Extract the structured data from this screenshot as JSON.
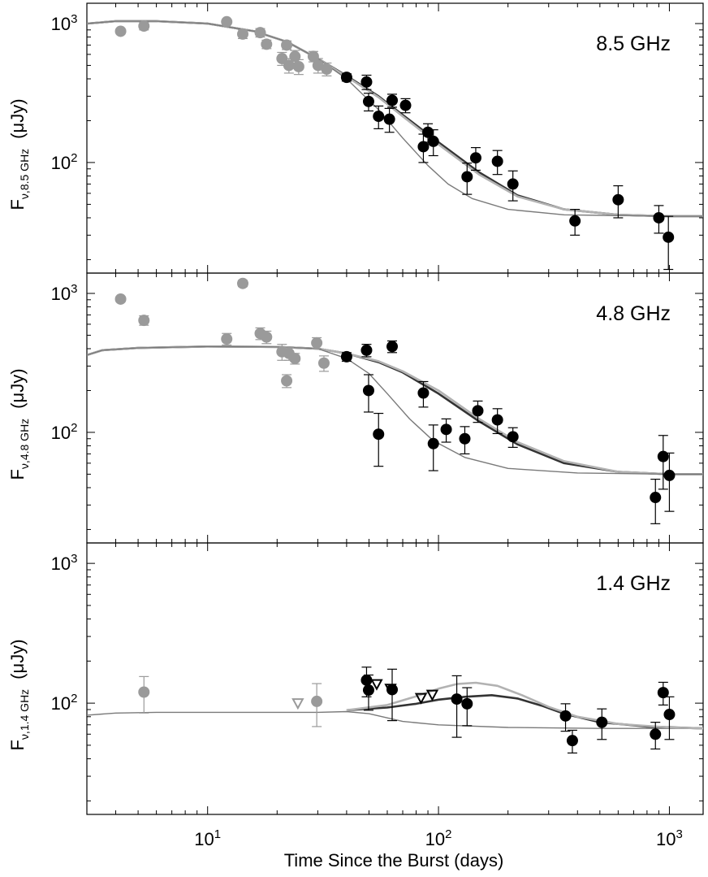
{
  "xlabel": "Time Since the Burst  (days)",
  "ylabel_prefix": "F",
  "ylabel_unit": "(μJy)",
  "colors": {
    "early": "#9a9a9a",
    "late": "#000000",
    "model_thin": "#7a7a7a",
    "model_dark": "#333333",
    "model_light": "#b2b2b2"
  },
  "chart_data": [
    {
      "type": "scatter",
      "annotation": "8.5 GHz",
      "ylabel_sub": "ν,8.5 GHz",
      "xscale": "log",
      "yscale": "log",
      "xlim": [
        3,
        1400
      ],
      "ylim": [
        16,
        1400
      ],
      "xticks": [
        {
          "v": 10,
          "m": "1",
          "e": "10"
        },
        {
          "v": 100,
          "m": "2",
          "e": "10"
        },
        {
          "v": 1000,
          "m": "3",
          "e": "10"
        }
      ],
      "yticks": [
        {
          "v": 100,
          "m": "2",
          "e": "10"
        },
        {
          "v": 1000,
          "m": "3",
          "e": "10"
        }
      ],
      "series": [
        {
          "kind": "early",
          "points": [
            [
              4.2,
              880,
              0
            ],
            [
              5.3,
              960,
              60
            ],
            [
              12.1,
              1030,
              0
            ],
            [
              14.2,
              840,
              60
            ],
            [
              16.9,
              860,
              60
            ],
            [
              18.0,
              710,
              50
            ],
            [
              21.0,
              560,
              60
            ],
            [
              22.0,
              700,
              50
            ],
            [
              22.5,
              500,
              60
            ],
            [
              23.9,
              580,
              60
            ],
            [
              24.8,
              490,
              60
            ],
            [
              28.7,
              580,
              50
            ],
            [
              30.1,
              500,
              60
            ],
            [
              32.8,
              470,
              50
            ]
          ]
        },
        {
          "kind": "late",
          "points": [
            [
              40,
              410,
              25
            ],
            [
              48.8,
              380,
              45
            ],
            [
              49.8,
              275,
              40
            ],
            [
              55,
              215,
              40
            ],
            [
              61.3,
              205,
              40
            ],
            [
              63,
              280,
              30
            ],
            [
              72,
              258,
              30
            ],
            [
              86,
              130,
              30
            ],
            [
              90,
              165,
              25
            ],
            [
              95,
              142,
              30
            ],
            [
              133,
              79,
              20
            ],
            [
              145,
              108,
              20
            ],
            [
              180,
              102,
              20
            ],
            [
              210,
              70,
              17
            ],
            [
              390,
              38,
              8
            ],
            [
              600,
              54,
              14
            ],
            [
              900,
              40,
              9
            ],
            [
              990,
              29,
              12
            ]
          ]
        }
      ],
      "upper_limits": [],
      "models": [
        {
          "style": "dark",
          "points": [
            [
              3,
              1000
            ],
            [
              4,
              1040
            ],
            [
              6,
              1040
            ],
            [
              10,
              1000
            ],
            [
              16,
              880
            ],
            [
              22,
              740
            ],
            [
              30,
              560
            ],
            [
              40,
              420
            ],
            [
              55,
              300
            ],
            [
              70,
              220
            ],
            [
              100,
              140
            ],
            [
              150,
              85
            ],
            [
              220,
              58
            ],
            [
              350,
              46
            ],
            [
              600,
              42
            ],
            [
              1000,
              41
            ],
            [
              1400,
              41
            ]
          ]
        },
        {
          "style": "light",
          "points": [
            [
              3,
              1000
            ],
            [
              4,
              1040
            ],
            [
              6,
              1040
            ],
            [
              10,
              1000
            ],
            [
              16,
              880
            ],
            [
              22,
              740
            ],
            [
              30,
              560
            ],
            [
              40,
              415
            ],
            [
              55,
              295
            ],
            [
              70,
              215
            ],
            [
              100,
              135
            ],
            [
              150,
              82
            ],
            [
              220,
              57
            ],
            [
              350,
              46
            ],
            [
              600,
              42
            ],
            [
              1000,
              41
            ],
            [
              1400,
              41
            ]
          ]
        },
        {
          "style": "thin",
          "points": [
            [
              3,
              1000
            ],
            [
              4,
              1040
            ],
            [
              6,
              1040
            ],
            [
              10,
              1000
            ],
            [
              16,
              880
            ],
            [
              22,
              740
            ],
            [
              30,
              560
            ],
            [
              40,
              400
            ],
            [
              55,
              240
            ],
            [
              70,
              150
            ],
            [
              90,
              95
            ],
            [
              110,
              70
            ],
            [
              140,
              55
            ],
            [
              200,
              46
            ],
            [
              350,
              42
            ],
            [
              1000,
              41
            ],
            [
              1400,
              41
            ]
          ]
        }
      ]
    },
    {
      "type": "scatter",
      "annotation": "4.8 GHz",
      "ylabel_sub": "ν,4.8 GHz",
      "xscale": "log",
      "yscale": "log",
      "xlim": [
        3,
        1400
      ],
      "ylim": [
        16,
        1400
      ],
      "xticks": [
        {
          "v": 10,
          "m": "1",
          "e": "10"
        },
        {
          "v": 100,
          "m": "2",
          "e": "10"
        },
        {
          "v": 1000,
          "m": "3",
          "e": "10"
        }
      ],
      "yticks": [
        {
          "v": 100,
          "m": "2",
          "e": "10"
        },
        {
          "v": 1000,
          "m": "3",
          "e": "10"
        }
      ],
      "series": [
        {
          "kind": "early",
          "points": [
            [
              4.2,
              910,
              40
            ],
            [
              5.3,
              640,
              50
            ],
            [
              14.2,
              1180,
              60
            ],
            [
              12.1,
              470,
              45
            ],
            [
              16.9,
              515,
              50
            ],
            [
              18.0,
              485,
              50
            ],
            [
              21.0,
              380,
              50
            ],
            [
              22.0,
              235,
              25
            ],
            [
              22.5,
              370,
              40
            ],
            [
              23.9,
              340,
              30
            ],
            [
              29.7,
              440,
              40
            ],
            [
              31.9,
              315,
              40
            ]
          ]
        },
        {
          "kind": "late",
          "points": [
            [
              40,
              350,
              25
            ],
            [
              48.8,
              390,
              40
            ],
            [
              49.8,
              200,
              60
            ],
            [
              55,
              97,
              40
            ],
            [
              63,
              415,
              40
            ],
            [
              86,
              192,
              40
            ],
            [
              95,
              83,
              30
            ],
            [
              108,
              105,
              20
            ],
            [
              130,
              90,
              20
            ],
            [
              148,
              143,
              25
            ],
            [
              180,
              123,
              25
            ],
            [
              210,
              93,
              15
            ],
            [
              870,
              34,
              12
            ],
            [
              940,
              67,
              28
            ],
            [
              1000,
              49,
              22
            ]
          ]
        }
      ],
      "upper_limits": [],
      "models": [
        {
          "style": "dark",
          "points": [
            [
              3,
              360
            ],
            [
              3.5,
              390
            ],
            [
              5,
              405
            ],
            [
              10,
              415
            ],
            [
              20,
              412
            ],
            [
              30,
              400
            ],
            [
              40,
              370
            ],
            [
              55,
              320
            ],
            [
              70,
              270
            ],
            [
              100,
              190
            ],
            [
              150,
              120
            ],
            [
              220,
              82
            ],
            [
              350,
              60
            ],
            [
              600,
              52
            ],
            [
              1000,
              50
            ],
            [
              1400,
              50
            ]
          ]
        },
        {
          "style": "light",
          "points": [
            [
              3,
              360
            ],
            [
              3.5,
              390
            ],
            [
              5,
              405
            ],
            [
              10,
              415
            ],
            [
              20,
              412
            ],
            [
              30,
              400
            ],
            [
              40,
              370
            ],
            [
              55,
              325
            ],
            [
              70,
              275
            ],
            [
              100,
              200
            ],
            [
              150,
              125
            ],
            [
              220,
              85
            ],
            [
              350,
              62
            ],
            [
              600,
              52
            ],
            [
              1000,
              50
            ],
            [
              1400,
              50
            ]
          ]
        },
        {
          "style": "thin",
          "points": [
            [
              3,
              360
            ],
            [
              3.5,
              390
            ],
            [
              5,
              405
            ],
            [
              10,
              415
            ],
            [
              20,
              412
            ],
            [
              30,
              400
            ],
            [
              40,
              340
            ],
            [
              50,
              265
            ],
            [
              60,
              190
            ],
            [
              75,
              125
            ],
            [
              95,
              87
            ],
            [
              130,
              66
            ],
            [
              200,
              55
            ],
            [
              400,
              51
            ],
            [
              1000,
              50
            ],
            [
              1400,
              50
            ]
          ]
        }
      ]
    },
    {
      "type": "scatter",
      "annotation": "1.4 GHz",
      "ylabel_sub": "ν,1.4 GHz",
      "xscale": "log",
      "yscale": "log",
      "xlim": [
        3,
        1400
      ],
      "ylim": [
        16,
        1400
      ],
      "xticks": [
        {
          "v": 10,
          "m": "1",
          "e": "10"
        },
        {
          "v": 100,
          "m": "2",
          "e": "10"
        },
        {
          "v": 1000,
          "m": "3",
          "e": "10"
        }
      ],
      "yticks": [
        {
          "v": 100,
          "m": "2",
          "e": "10"
        },
        {
          "v": 1000,
          "m": "3",
          "e": "10"
        }
      ],
      "series": [
        {
          "kind": "early",
          "points": [
            [
              5.3,
              120,
              35
            ],
            [
              29.7,
              103,
              35
            ]
          ]
        },
        {
          "kind": "late",
          "points": [
            [
              48.8,
              146,
              35
            ],
            [
              49.8,
              124,
              35
            ],
            [
              63,
              125,
              50
            ],
            [
              120,
              107,
              50
            ],
            [
              133,
              99,
              30
            ],
            [
              355,
              81,
              18
            ],
            [
              380,
              54,
              10
            ],
            [
              510,
              73,
              18
            ],
            [
              870,
              60,
              13
            ],
            [
              940,
              119,
              22
            ],
            [
              1000,
              83,
              28
            ]
          ]
        }
      ],
      "upper_limits": [
        {
          "kind": "early",
          "points": [
            [
              24.6,
              100
            ]
          ]
        },
        {
          "kind": "late",
          "points": [
            [
              54,
              137
            ],
            [
              62,
              127
            ],
            [
              84,
              109
            ],
            [
              94,
              115
            ]
          ]
        }
      ],
      "models": [
        {
          "style": "thin",
          "points": [
            [
              3,
              82
            ],
            [
              4,
              85
            ],
            [
              6,
              86
            ],
            [
              10,
              86
            ],
            [
              20,
              86
            ],
            [
              30,
              86
            ],
            [
              40,
              87
            ],
            [
              50,
              84
            ],
            [
              70,
              74
            ],
            [
              100,
              70
            ],
            [
              200,
              67
            ],
            [
              500,
              66
            ],
            [
              1400,
              66
            ]
          ]
        },
        {
          "style": "dark",
          "points": [
            [
              40,
              89
            ],
            [
              60,
              93
            ],
            [
              80,
              99
            ],
            [
              100,
              106
            ],
            [
              130,
              111
            ],
            [
              170,
              114
            ],
            [
              220,
              108
            ],
            [
              280,
              96
            ],
            [
              350,
              84
            ],
            [
              500,
              73
            ],
            [
              800,
              68
            ],
            [
              1400,
              66
            ]
          ]
        },
        {
          "style": "light",
          "points": [
            [
              40,
              89
            ],
            [
              60,
              97
            ],
            [
              80,
              112
            ],
            [
              100,
              127
            ],
            [
              120,
              137
            ],
            [
              145,
              140
            ],
            [
              180,
              133
            ],
            [
              230,
              114
            ],
            [
              300,
              94
            ],
            [
              400,
              80
            ],
            [
              600,
              71
            ],
            [
              1000,
              67
            ],
            [
              1400,
              66
            ]
          ]
        }
      ]
    }
  ]
}
